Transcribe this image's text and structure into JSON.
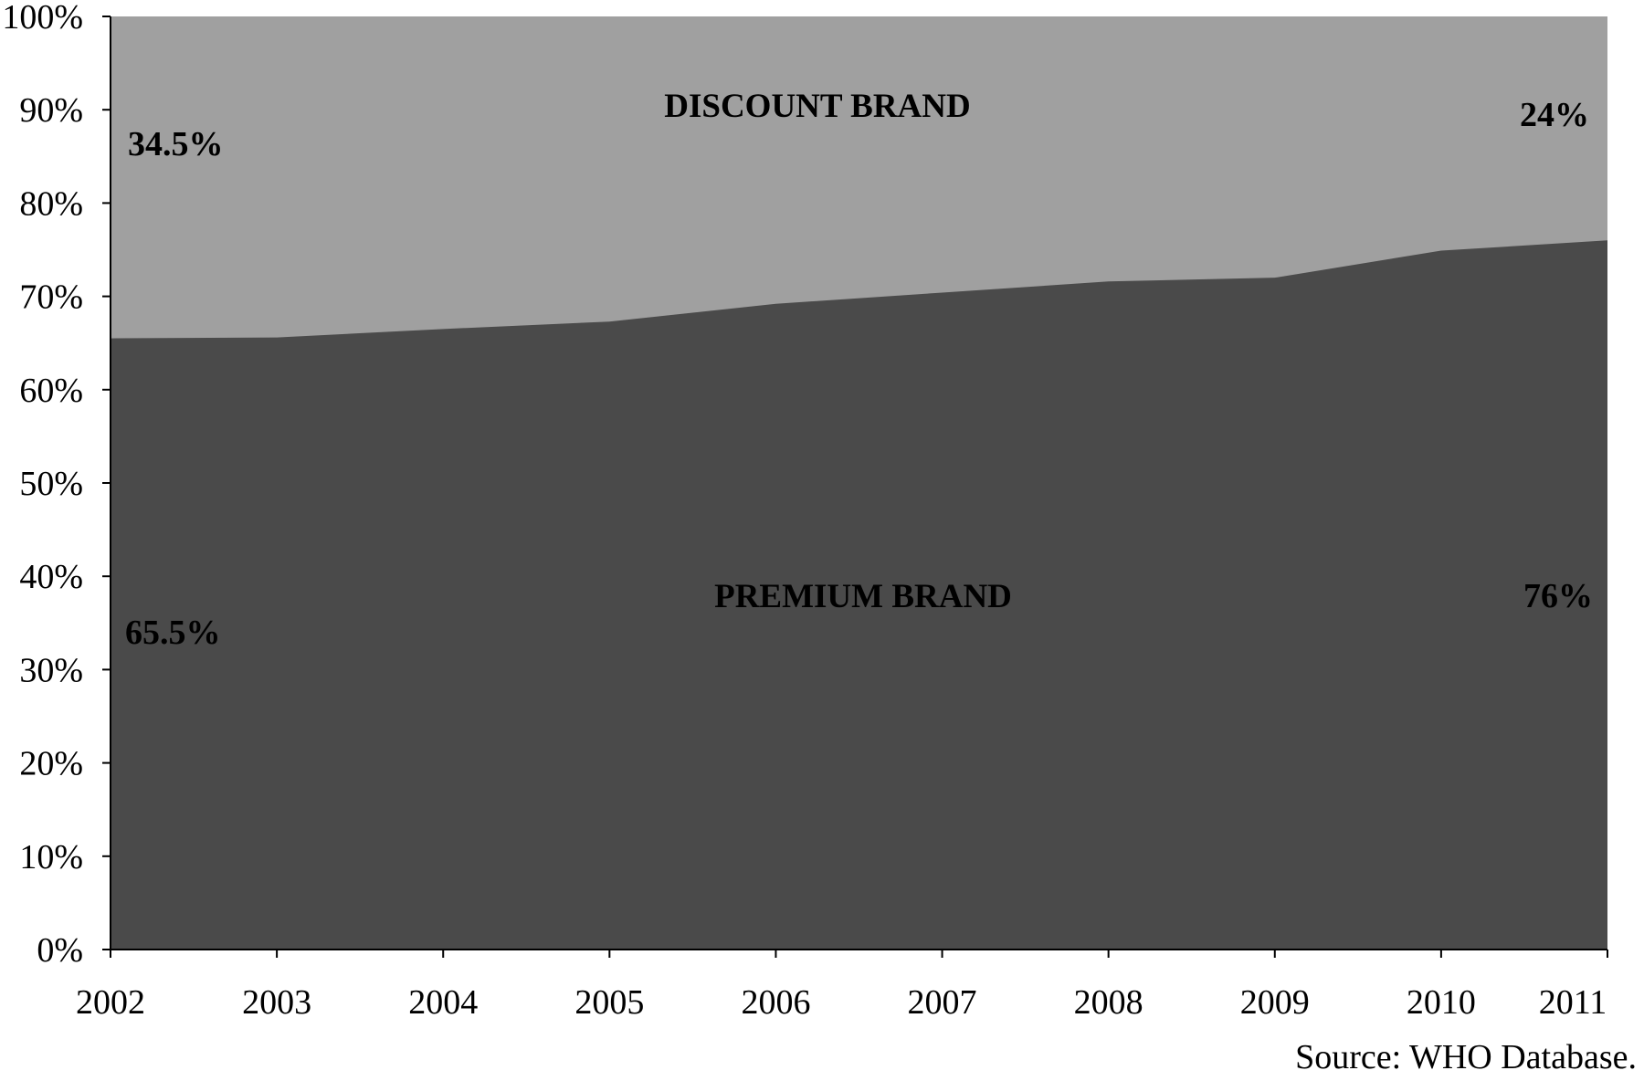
{
  "chart_data": {
    "type": "area",
    "stacked": true,
    "x": [
      "2002",
      "2003",
      "2004",
      "2005",
      "2006",
      "2007",
      "2008",
      "2009",
      "2010",
      "2011"
    ],
    "series": [
      {
        "name": "PREMIUM BRAND",
        "values": [
          65.5,
          65.6,
          66.5,
          67.3,
          69.2,
          70.4,
          71.6,
          72.0,
          74.9,
          76.0
        ],
        "color": "#4a4a4a"
      },
      {
        "name": "DISCOUNT BRAND",
        "values": [
          34.5,
          34.4,
          33.5,
          32.7,
          30.8,
          29.6,
          28.4,
          28.0,
          25.1,
          24.0
        ],
        "color": "#a0a0a0"
      }
    ],
    "ylim": [
      0,
      100
    ],
    "yticks": [
      "0%",
      "10%",
      "20%",
      "30%",
      "40%",
      "50%",
      "60%",
      "70%",
      "80%",
      "90%",
      "100%"
    ],
    "grid": false,
    "annotations": {
      "discount_start": "34.5%",
      "discount_end": "24%",
      "premium_start": "65.5%",
      "premium_end": "76%"
    },
    "source": "Source: WHO Database."
  }
}
